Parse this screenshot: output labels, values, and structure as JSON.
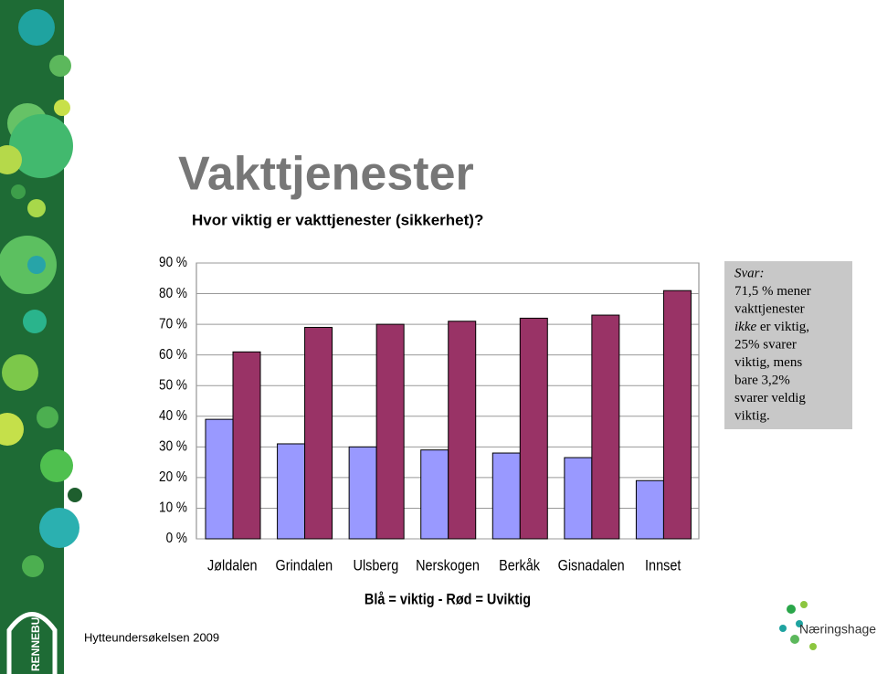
{
  "title": "Vakttjenester",
  "subtitle": "Hvor viktig er vakttjenester (sikkerhet)?",
  "footer": "Hytteundersøkelsen 2009",
  "logo_left": "RENNEBU",
  "logo_right": "Næringshage",
  "chart_data": {
    "type": "bar",
    "categories": [
      "Jøldalen",
      "Grindalen",
      "Ulsberg",
      "Nerskogen",
      "Berkåk",
      "Gisnadalen",
      "Innset"
    ],
    "series": [
      {
        "color": "#9999ff",
        "values": [
          39,
          31,
          30,
          29,
          28,
          26.5,
          19
        ]
      },
      {
        "color": "#993366",
        "values": [
          61,
          69,
          70,
          71,
          72,
          73,
          81
        ]
      }
    ],
    "ylim": [
      0,
      90
    ],
    "yticks": [
      {
        "value": 0,
        "label": "0 %"
      },
      {
        "value": 10,
        "label": "10 %"
      },
      {
        "value": 20,
        "label": "20 %"
      },
      {
        "value": 30,
        "label": "30 %"
      },
      {
        "value": 40,
        "label": "40 %"
      },
      {
        "value": 50,
        "label": "50 %"
      },
      {
        "value": 60,
        "label": "60 %"
      },
      {
        "value": 70,
        "label": "70 %"
      },
      {
        "value": 80,
        "label": "80 %"
      },
      {
        "value": 90,
        "label": "90 %"
      }
    ],
    "grid": true,
    "note": "Blå = viktig - Rød = Uviktig",
    "annotation": {
      "heading": "Svar:",
      "lines": [
        [
          "71,5 % mener"
        ],
        [
          "vakttjenester"
        ],
        [
          "ikke",
          " er viktig,"
        ],
        [
          "25% svarer"
        ],
        [
          "viktig, mens"
        ],
        [
          "bare 3,2%"
        ],
        [
          "svarer veldig"
        ],
        [
          "viktig."
        ]
      ]
    }
  }
}
